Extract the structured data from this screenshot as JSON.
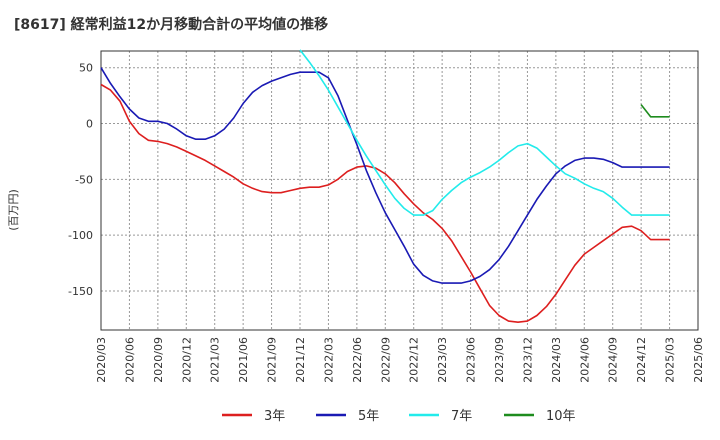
{
  "chart_data": {
    "type": "line",
    "title": "[8617]  経常利益12か月移動合計の平均値の推移",
    "ylabel": "(百万円)",
    "xlabel": "",
    "ylim": [
      -185,
      65
    ],
    "yticks": [
      50,
      0,
      -50,
      -100,
      -150
    ],
    "xticks": [
      "2020/03",
      "2020/06",
      "2020/09",
      "2020/12",
      "2021/03",
      "2021/06",
      "2021/09",
      "2021/12",
      "2022/03",
      "2022/06",
      "2022/09",
      "2022/12",
      "2023/03",
      "2023/06",
      "2023/09",
      "2023/12",
      "2024/03",
      "2024/06",
      "2024/09",
      "2024/12",
      "2025/03",
      "2025/06"
    ],
    "grid": true,
    "legend_position": "bottom",
    "series": [
      {
        "name": "3年",
        "color": "#dd1f1f",
        "x": [
          "2020/03",
          "2020/04",
          "2020/05",
          "2020/06",
          "2020/07",
          "2020/08",
          "2020/09",
          "2020/10",
          "2020/11",
          "2020/12",
          "2021/01",
          "2021/02",
          "2021/03",
          "2021/04",
          "2021/05",
          "2021/06",
          "2021/07",
          "2021/08",
          "2021/09",
          "2021/10",
          "2021/11",
          "2021/12",
          "2022/01",
          "2022/02",
          "2022/03",
          "2022/04",
          "2022/05",
          "2022/06",
          "2022/07",
          "2022/08",
          "2022/09",
          "2022/10",
          "2022/11",
          "2022/12",
          "2023/01",
          "2023/02",
          "2023/03",
          "2023/04",
          "2023/05",
          "2023/06",
          "2023/07",
          "2023/08",
          "2023/09",
          "2023/10",
          "2023/11",
          "2023/12",
          "2024/01",
          "2024/02",
          "2024/03",
          "2024/04",
          "2024/05",
          "2024/06",
          "2024/07",
          "2024/08",
          "2024/09",
          "2024/10",
          "2024/11",
          "2024/12",
          "2025/01",
          "2025/02",
          "2025/03"
        ],
        "values": [
          35,
          30,
          20,
          2,
          -9,
          -15,
          -16,
          -18,
          -21,
          -25,
          -29,
          -33,
          -38,
          -43,
          -48,
          -54,
          -58,
          -61,
          -62,
          -62,
          -60,
          -58,
          -57,
          -57,
          -55,
          -50,
          -43,
          -39,
          -38,
          -40,
          -45,
          -53,
          -63,
          -72,
          -80,
          -86,
          -94,
          -105,
          -119,
          -133,
          -148,
          -163,
          -172,
          -177,
          -178,
          -177,
          -172,
          -164,
          -153,
          -140,
          -127,
          -117,
          -111,
          -105,
          -99,
          -93,
          -92,
          -96,
          -104,
          -104,
          -104
        ]
      },
      {
        "name": "5年",
        "color": "#1a1ab4",
        "x": [
          "2020/03",
          "2020/04",
          "2020/05",
          "2020/06",
          "2020/07",
          "2020/08",
          "2020/09",
          "2020/10",
          "2020/11",
          "2020/12",
          "2021/01",
          "2021/02",
          "2021/03",
          "2021/04",
          "2021/05",
          "2021/06",
          "2021/07",
          "2021/08",
          "2021/09",
          "2021/10",
          "2021/11",
          "2021/12",
          "2022/01",
          "2022/02",
          "2022/03",
          "2022/04",
          "2022/05",
          "2022/06",
          "2022/07",
          "2022/08",
          "2022/09",
          "2022/10",
          "2022/11",
          "2022/12",
          "2023/01",
          "2023/02",
          "2023/03",
          "2023/04",
          "2023/05",
          "2023/06",
          "2023/07",
          "2023/08",
          "2023/09",
          "2023/10",
          "2023/11",
          "2023/12",
          "2024/01",
          "2024/02",
          "2024/03",
          "2024/04",
          "2024/05",
          "2024/06",
          "2024/07",
          "2024/08",
          "2024/09",
          "2024/10",
          "2024/11",
          "2024/12",
          "2025/01",
          "2025/02",
          "2025/03"
        ],
        "values": [
          50,
          36,
          24,
          13,
          5,
          2,
          2,
          0,
          -5,
          -11,
          -14,
          -14,
          -11,
          -5,
          5,
          18,
          28,
          34,
          38,
          41,
          44,
          46,
          46,
          46,
          41,
          25,
          3,
          -19,
          -42,
          -62,
          -80,
          -95,
          -110,
          -126,
          -136,
          -141,
          -143,
          -143,
          -143,
          -141,
          -137,
          -131,
          -122,
          -110,
          -96,
          -82,
          -68,
          -56,
          -45,
          -38,
          -33,
          -31,
          -31,
          -32,
          -35,
          -39,
          -39,
          -39,
          -39,
          -39,
          -39
        ]
      },
      {
        "name": "7年",
        "color": "#22ebeb",
        "x": [
          "2021/12",
          "2022/01",
          "2022/02",
          "2022/03",
          "2022/04",
          "2022/05",
          "2022/06",
          "2022/07",
          "2022/08",
          "2022/09",
          "2022/10",
          "2022/11",
          "2022/12",
          "2023/01",
          "2023/02",
          "2023/03",
          "2023/04",
          "2023/05",
          "2023/06",
          "2023/07",
          "2023/08",
          "2023/09",
          "2023/10",
          "2023/11",
          "2023/12",
          "2024/01",
          "2024/02",
          "2024/03",
          "2024/04",
          "2024/05",
          "2024/06",
          "2024/07",
          "2024/08",
          "2024/09",
          "2024/10",
          "2024/11",
          "2024/12",
          "2025/01",
          "2025/02",
          "2025/03"
        ],
        "values": [
          66,
          55,
          43,
          30,
          15,
          0,
          -15,
          -29,
          -42,
          -55,
          -67,
          -76,
          -82,
          -82,
          -78,
          -68,
          -60,
          -53,
          -48,
          -44,
          -39,
          -33,
          -26,
          -20,
          -18,
          -22,
          -30,
          -38,
          -45,
          -49,
          -54,
          -58,
          -61,
          -67,
          -75,
          -82,
          -82,
          -82,
          -82,
          -82
        ]
      },
      {
        "name": "10年",
        "color": "#1e8c1e",
        "x": [
          "2024/12",
          "2025/01",
          "2025/02",
          "2025/03"
        ],
        "values": [
          17,
          6,
          6,
          6
        ]
      }
    ]
  }
}
